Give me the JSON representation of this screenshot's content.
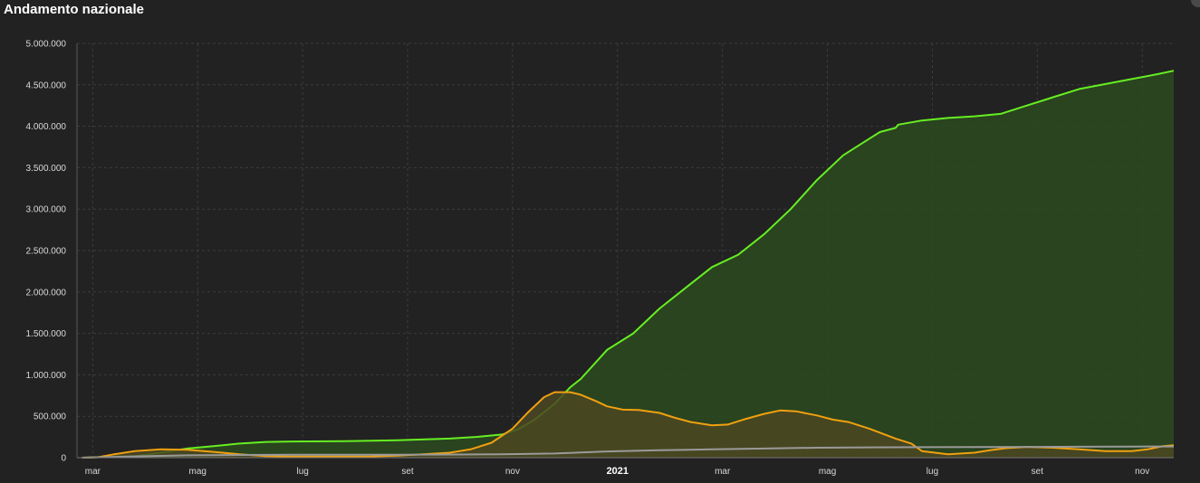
{
  "header": {
    "title": "Andamento nazionale"
  },
  "chart_data": {
    "type": "area",
    "title": "Andamento nazionale",
    "x_unit": "month index (0 = marzo 2020)",
    "xlim": [
      -0.1,
      20.8
    ],
    "ylim": [
      0,
      5000000
    ],
    "y_ticks": [
      {
        "value": 0,
        "label": "0"
      },
      {
        "value": 500000,
        "label": "500.000"
      },
      {
        "value": 1000000,
        "label": "1.000.000"
      },
      {
        "value": 1500000,
        "label": "1.500.000"
      },
      {
        "value": 2000000,
        "label": "2.000.000"
      },
      {
        "value": 2500000,
        "label": "2.500.000"
      },
      {
        "value": 3000000,
        "label": "3.000.000"
      },
      {
        "value": 3500000,
        "label": "3.500.000"
      },
      {
        "value": 4000000,
        "label": "4.000.000"
      },
      {
        "value": 4500000,
        "label": "4.500.000"
      },
      {
        "value": 5000000,
        "label": "5.000.000"
      }
    ],
    "x_ticks": [
      {
        "value": 0.2,
        "label": "mar",
        "bold": false
      },
      {
        "value": 2.2,
        "label": "mag",
        "bold": false
      },
      {
        "value": 4.2,
        "label": "lug",
        "bold": false
      },
      {
        "value": 6.2,
        "label": "set",
        "bold": false
      },
      {
        "value": 8.2,
        "label": "nov",
        "bold": false
      },
      {
        "value": 10.2,
        "label": "2021",
        "bold": true
      },
      {
        "value": 12.2,
        "label": "mar",
        "bold": false
      },
      {
        "value": 14.2,
        "label": "mag",
        "bold": false
      },
      {
        "value": 16.2,
        "label": "lug",
        "bold": false
      },
      {
        "value": 18.2,
        "label": "set",
        "bold": false
      },
      {
        "value": 20.2,
        "label": "nov",
        "bold": false
      }
    ],
    "grid": true,
    "series": [
      {
        "color": "#66ee22",
        "fill": "#2a4a1e",
        "points": [
          [
            0,
            0
          ],
          [
            1,
            20000
          ],
          [
            1.5,
            60000
          ],
          [
            2,
            110000
          ],
          [
            2.5,
            140000
          ],
          [
            3,
            170000
          ],
          [
            3.5,
            190000
          ],
          [
            4,
            195000
          ],
          [
            5,
            200000
          ],
          [
            6,
            210000
          ],
          [
            7,
            230000
          ],
          [
            7.5,
            250000
          ],
          [
            8,
            280000
          ],
          [
            8.3,
            340000
          ],
          [
            8.6,
            450000
          ],
          [
            9,
            650000
          ],
          [
            9.3,
            850000
          ],
          [
            9.5,
            950000
          ],
          [
            10,
            1300000
          ],
          [
            10.5,
            1500000
          ],
          [
            11,
            1800000
          ],
          [
            11.5,
            2050000
          ],
          [
            12,
            2300000
          ],
          [
            12.5,
            2450000
          ],
          [
            13,
            2700000
          ],
          [
            13.5,
            3000000
          ],
          [
            14,
            3350000
          ],
          [
            14.5,
            3650000
          ],
          [
            15,
            3850000
          ],
          [
            15.2,
            3930000
          ],
          [
            15.5,
            3980000
          ],
          [
            15.55,
            4020000
          ],
          [
            16,
            4070000
          ],
          [
            16.5,
            4100000
          ],
          [
            17,
            4120000
          ],
          [
            17.5,
            4150000
          ],
          [
            18,
            4250000
          ],
          [
            18.5,
            4350000
          ],
          [
            19,
            4450000
          ],
          [
            19.5,
            4510000
          ],
          [
            20,
            4570000
          ],
          [
            20.5,
            4630000
          ],
          [
            20.8,
            4670000
          ]
        ]
      },
      {
        "color": "#f0a010",
        "fill": "#4b4622",
        "points": [
          [
            0,
            0
          ],
          [
            0.3,
            5000
          ],
          [
            0.6,
            40000
          ],
          [
            1,
            80000
          ],
          [
            1.5,
            100000
          ],
          [
            2,
            95000
          ],
          [
            2.5,
            70000
          ],
          [
            3,
            40000
          ],
          [
            3.5,
            20000
          ],
          [
            4,
            14000
          ],
          [
            5,
            13000
          ],
          [
            5.5,
            15000
          ],
          [
            6,
            25000
          ],
          [
            6.5,
            40000
          ],
          [
            7,
            60000
          ],
          [
            7.4,
            100000
          ],
          [
            7.8,
            180000
          ],
          [
            8.2,
            350000
          ],
          [
            8.5,
            550000
          ],
          [
            8.8,
            730000
          ],
          [
            9,
            790000
          ],
          [
            9.3,
            790000
          ],
          [
            9.5,
            760000
          ],
          [
            9.8,
            680000
          ],
          [
            10,
            620000
          ],
          [
            10.3,
            580000
          ],
          [
            10.6,
            575000
          ],
          [
            11,
            540000
          ],
          [
            11.3,
            480000
          ],
          [
            11.6,
            430000
          ],
          [
            12,
            390000
          ],
          [
            12.3,
            400000
          ],
          [
            12.6,
            460000
          ],
          [
            13,
            530000
          ],
          [
            13.3,
            570000
          ],
          [
            13.6,
            560000
          ],
          [
            14,
            510000
          ],
          [
            14.3,
            460000
          ],
          [
            14.6,
            430000
          ],
          [
            15,
            350000
          ],
          [
            15.5,
            230000
          ],
          [
            15.8,
            170000
          ],
          [
            16,
            80000
          ],
          [
            16.5,
            40000
          ],
          [
            17,
            60000
          ],
          [
            17.3,
            90000
          ],
          [
            17.6,
            115000
          ],
          [
            18,
            130000
          ],
          [
            18.5,
            120000
          ],
          [
            19,
            100000
          ],
          [
            19.5,
            80000
          ],
          [
            20,
            80000
          ],
          [
            20.3,
            100000
          ],
          [
            20.6,
            140000
          ],
          [
            20.8,
            150000
          ]
        ]
      },
      {
        "color": "#9a9a9a",
        "fill": "none",
        "points": [
          [
            0,
            0
          ],
          [
            1,
            15000
          ],
          [
            2,
            28000
          ],
          [
            3,
            33000
          ],
          [
            4,
            35000
          ],
          [
            6,
            36000
          ],
          [
            8,
            40000
          ],
          [
            9,
            50000
          ],
          [
            10,
            75000
          ],
          [
            11,
            90000
          ],
          [
            12,
            100000
          ],
          [
            13,
            110000
          ],
          [
            14,
            120000
          ],
          [
            15,
            125000
          ],
          [
            16,
            127000
          ],
          [
            17,
            129000
          ],
          [
            18,
            130000
          ],
          [
            19,
            132000
          ],
          [
            20,
            134000
          ],
          [
            20.8,
            135000
          ]
        ]
      }
    ]
  }
}
